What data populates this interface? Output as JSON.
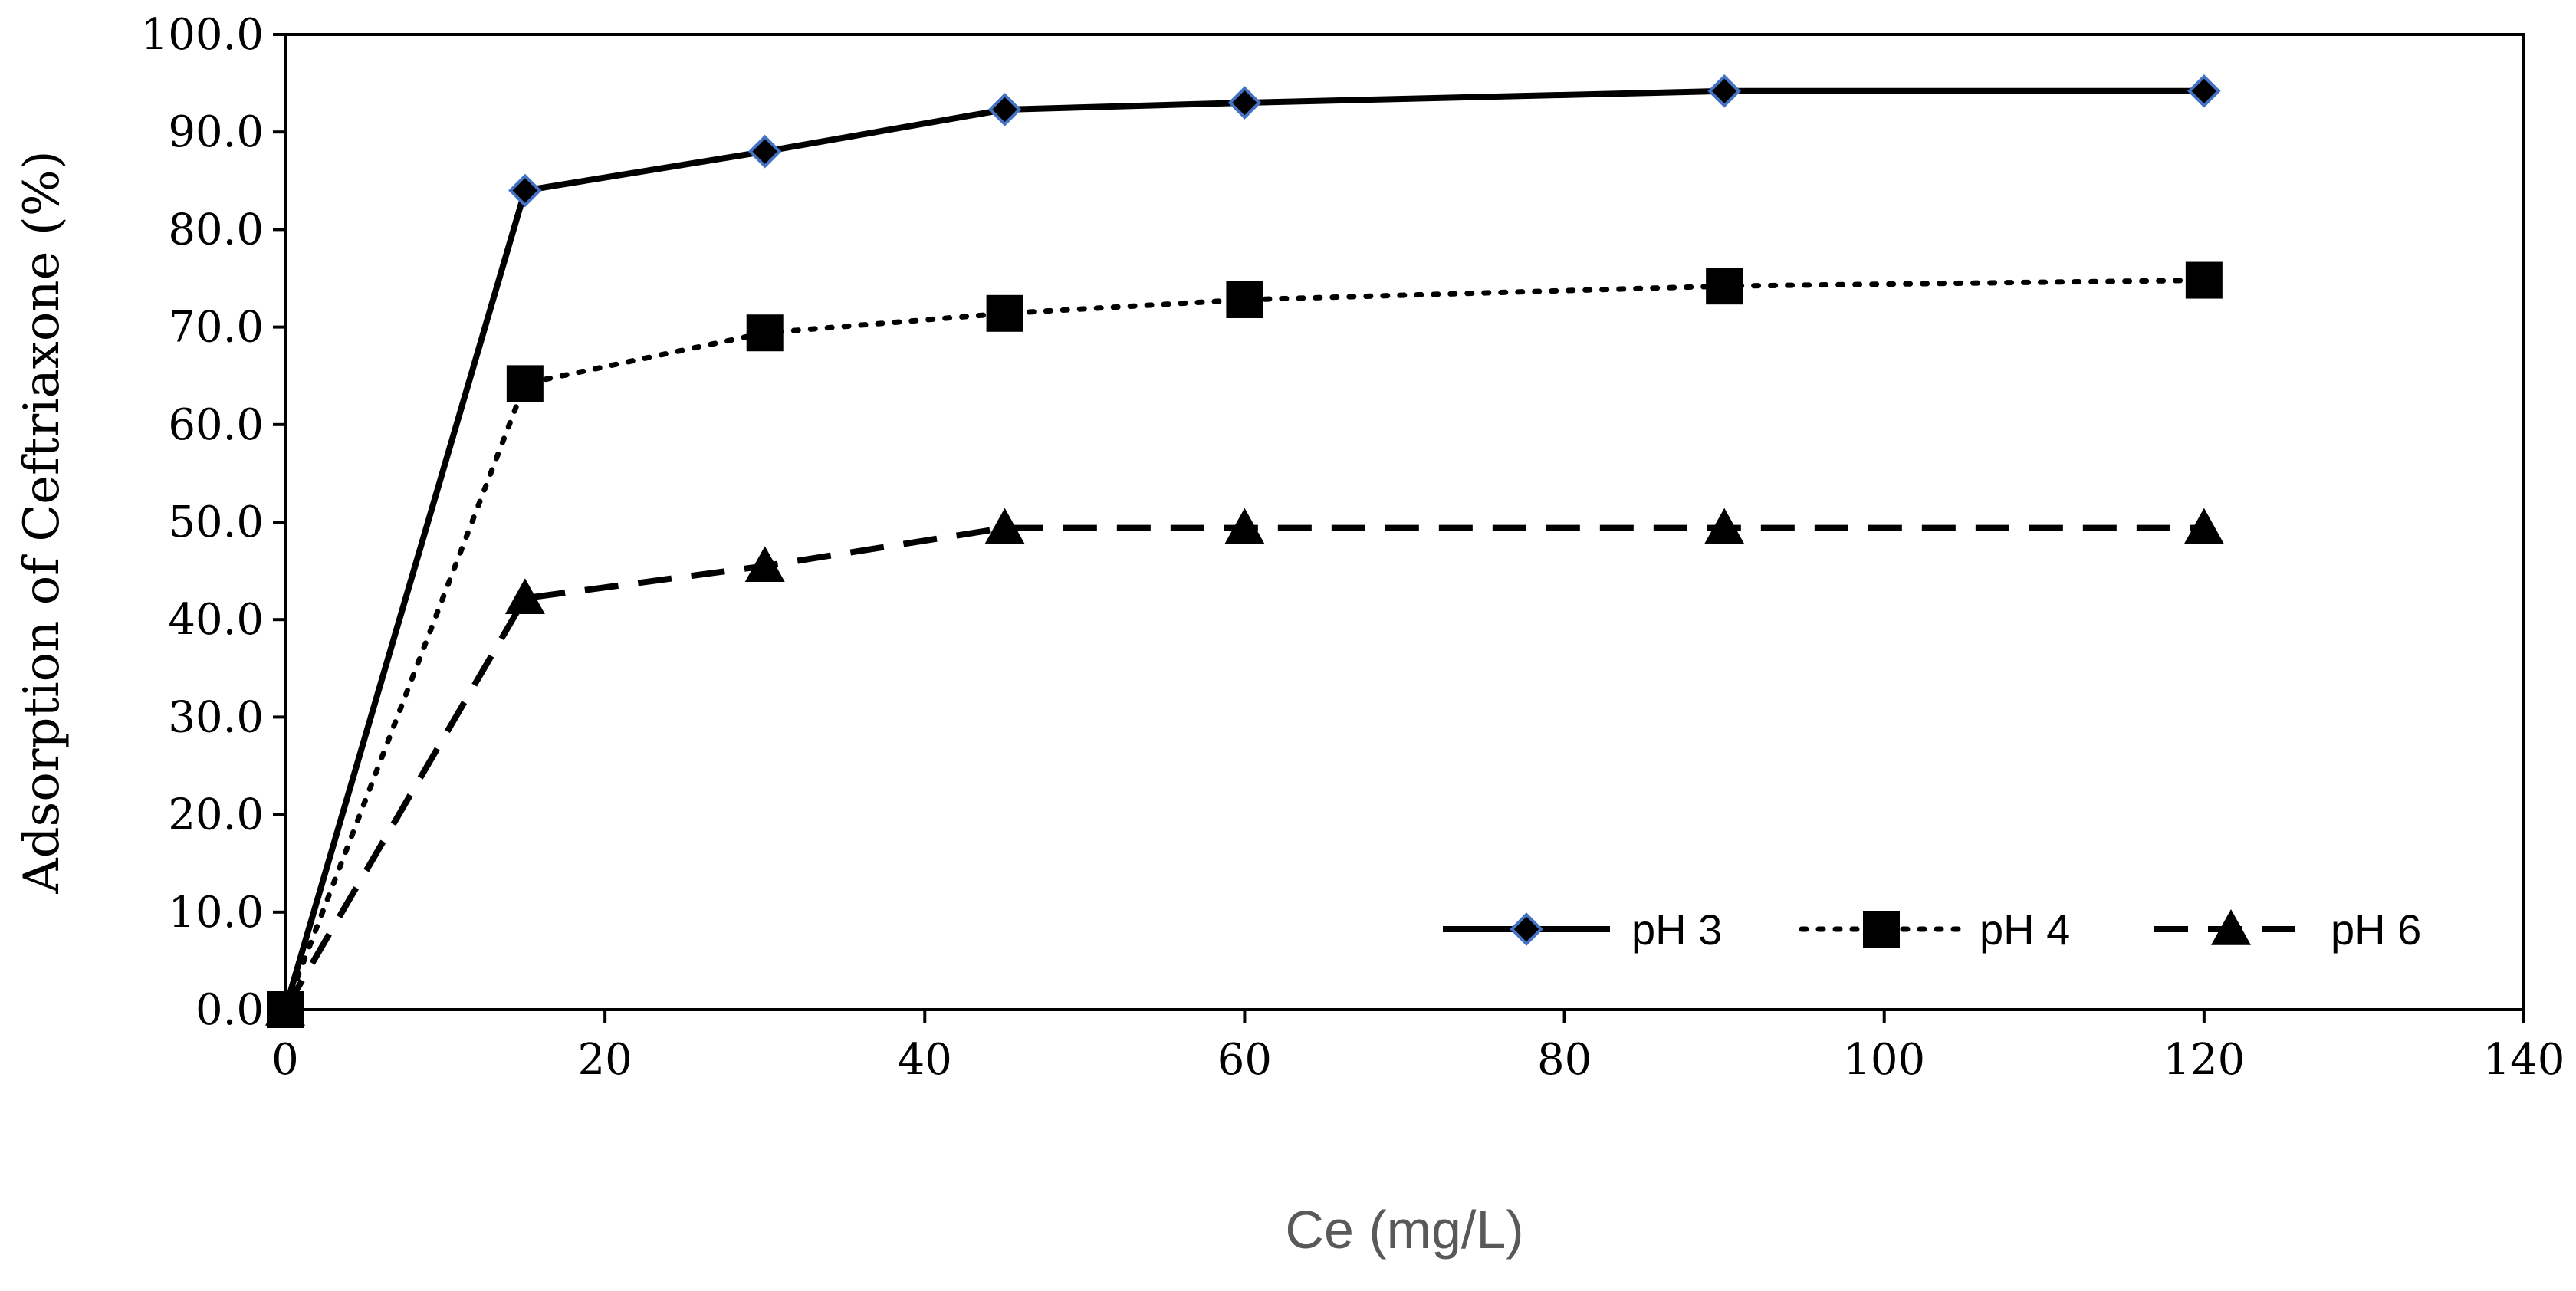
{
  "chart_data": {
    "type": "line",
    "title": "",
    "xlabel": "Ce (mg/L)",
    "ylabel": "Adsorption of Ceftriaxone (%)",
    "xlim": [
      0,
      140
    ],
    "ylim": [
      0,
      100
    ],
    "x_ticks": [
      0,
      20,
      40,
      60,
      80,
      100,
      120,
      140
    ],
    "y_ticks": [
      0,
      10,
      20,
      30,
      40,
      50,
      60,
      70,
      80,
      90,
      100
    ],
    "x_tick_labels": [
      "0",
      "20",
      "40",
      "60",
      "80",
      "100",
      "120",
      "140"
    ],
    "y_tick_labels": [
      "0.0",
      "10.0",
      "20.0",
      "30.0",
      "40.0",
      "50.0",
      "60.0",
      "70.0",
      "80.0",
      "90.0",
      "100.0"
    ],
    "grid": false,
    "legend_position": "bottom-right",
    "x": [
      0,
      15,
      30,
      45,
      60,
      90,
      120
    ],
    "series": [
      {
        "name": "pH 3",
        "values": [
          0,
          84.0,
          88.0,
          92.3,
          93.0,
          94.2,
          94.2
        ],
        "line_style": "solid",
        "marker": "diamond",
        "color": "#000000",
        "marker_edge": "#4472c4"
      },
      {
        "name": "pH 4",
        "values": [
          0,
          64.2,
          69.4,
          71.4,
          72.8,
          74.2,
          74.8
        ],
        "line_style": "dotted",
        "marker": "square",
        "color": "#000000"
      },
      {
        "name": "pH 6",
        "values": [
          0,
          42.2,
          45.5,
          49.4,
          49.4,
          49.4,
          49.4
        ],
        "line_style": "dashed",
        "marker": "triangle",
        "color": "#000000"
      }
    ]
  }
}
